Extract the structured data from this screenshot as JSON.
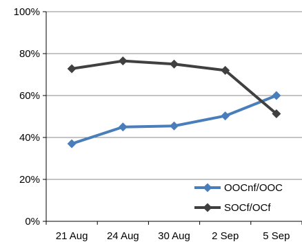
{
  "chart_data": {
    "type": "line",
    "categories": [
      "21 Aug",
      "24 Aug",
      "30 Aug",
      "2 Sep",
      "5 Sep"
    ],
    "y_ticks": [
      "0%",
      "20%",
      "40%",
      "60%",
      "80%",
      "100%"
    ],
    "ylim": [
      0,
      100
    ],
    "grid": true,
    "legend_position": "bottom-right",
    "series": [
      {
        "name": "OOCnf/OOC",
        "values": [
          37,
          45,
          45.5,
          50.3,
          60
        ],
        "color": "#4a7ebb",
        "marker": "diamond"
      },
      {
        "name": "SOCf/OCf",
        "values": [
          72.8,
          76.5,
          75,
          72,
          51.3
        ],
        "color": "#404040",
        "marker": "diamond"
      }
    ]
  }
}
